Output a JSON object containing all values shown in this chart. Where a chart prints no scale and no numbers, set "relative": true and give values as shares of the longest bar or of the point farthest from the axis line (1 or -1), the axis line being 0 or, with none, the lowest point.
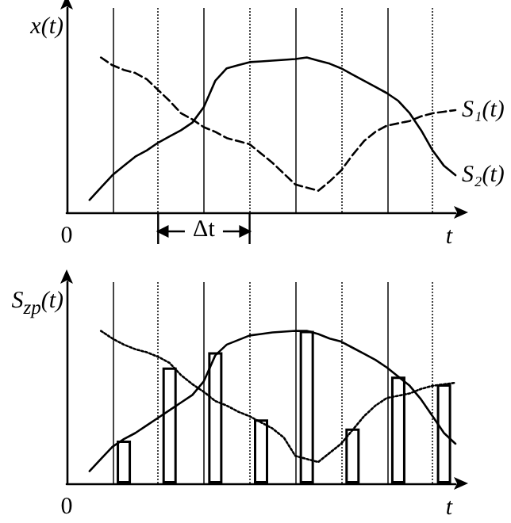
{
  "chart_data": [
    {
      "type": "line",
      "relative": true,
      "ylabel": "x(t)",
      "xlabel": "t",
      "annotations": [
        "0",
        "Δt"
      ],
      "marker": "none",
      "grid": "x",
      "categories": [
        null,
        null,
        null,
        null,
        null,
        null,
        null,
        null,
        null,
        null,
        null,
        null,
        null,
        null,
        null,
        null,
        null,
        null,
        null,
        null,
        null,
        null,
        null,
        null,
        null,
        null,
        null,
        null,
        null,
        null,
        null,
        null,
        null,
        null,
        null
      ],
      "series": [
        {
          "name": "S₁(t)",
          "color": "#000000",
          "line_style": "dashed",
          "values": [
            null,
            null,
            null,
            1.0,
            0.95,
            0.92,
            0.9,
            0.86,
            0.79,
            0.72,
            0.64,
            0.6,
            0.55,
            0.52,
            0.48,
            0.46,
            0.44,
            0.38,
            0.32,
            0.25,
            0.18,
            0.16,
            0.14,
            0.2,
            0.27,
            0.37,
            0.46,
            0.52,
            0.56,
            0.575,
            0.59,
            0.62,
            0.64,
            0.65,
            0.66
          ]
        },
        {
          "name": "S₂(t)",
          "color": "#000000",
          "line_style": "solid",
          "values": [
            null,
            null,
            0.08,
            0.16,
            0.24,
            0.3,
            0.36,
            0.4,
            0.45,
            0.49,
            0.53,
            0.58,
            0.68,
            0.85,
            0.93,
            0.95,
            0.97,
            0.975,
            0.98,
            0.985,
            0.99,
            1.0,
            0.98,
            0.96,
            0.93,
            0.89,
            0.85,
            0.81,
            0.77,
            0.72,
            0.64,
            0.53,
            0.4,
            0.3,
            0.24
          ]
        }
      ]
    },
    {
      "type": "line",
      "relative": true,
      "ylabel": "S$_{zp}$(t)",
      "xlabel": "t",
      "annotations": [
        "0"
      ],
      "marker": "none",
      "grid": "x",
      "categories": [
        null,
        null,
        null,
        null,
        null,
        null,
        null,
        null,
        null,
        null,
        null,
        null,
        null,
        null,
        null,
        null,
        null,
        null,
        null,
        null,
        null,
        null,
        null,
        null,
        null,
        null,
        null,
        null,
        null,
        null,
        null,
        null,
        null,
        null,
        null
      ],
      "series": [
        {
          "color": "#000000",
          "line_style": "dotted",
          "values": [
            null,
            null,
            null,
            1.0,
            0.95,
            0.91,
            0.88,
            0.86,
            0.83,
            0.79,
            0.71,
            0.65,
            0.6,
            0.54,
            0.51,
            0.47,
            0.44,
            0.4,
            0.36,
            0.3,
            0.18,
            0.16,
            0.14,
            0.2,
            0.26,
            0.35,
            0.44,
            0.51,
            0.56,
            0.575,
            0.59,
            0.62,
            0.64,
            0.65,
            0.66
          ]
        },
        {
          "color": "#000000",
          "line_style": "solid",
          "values": [
            null,
            null,
            0.08,
            0.16,
            0.24,
            0.29,
            0.33,
            0.38,
            0.43,
            0.48,
            0.53,
            0.58,
            0.67,
            0.84,
            0.91,
            0.94,
            0.97,
            0.98,
            0.99,
            0.995,
            1.0,
            1.0,
            0.98,
            0.95,
            0.93,
            0.89,
            0.85,
            0.81,
            0.76,
            0.7,
            0.64,
            0.55,
            0.44,
            0.33,
            0.26
          ]
        },
        {
          "type": "bar",
          "color": "#000000",
          "values": [
            null,
            null,
            null,
            null,
            null,
            0.28,
            null,
            null,
            null,
            0.76,
            null,
            null,
            null,
            0.86,
            null,
            null,
            null,
            0.42,
            null,
            null,
            null,
            1.0,
            null,
            null,
            null,
            0.36,
            null,
            null,
            null,
            0.7,
            null,
            null,
            null,
            0.65,
            null
          ]
        }
      ]
    }
  ]
}
